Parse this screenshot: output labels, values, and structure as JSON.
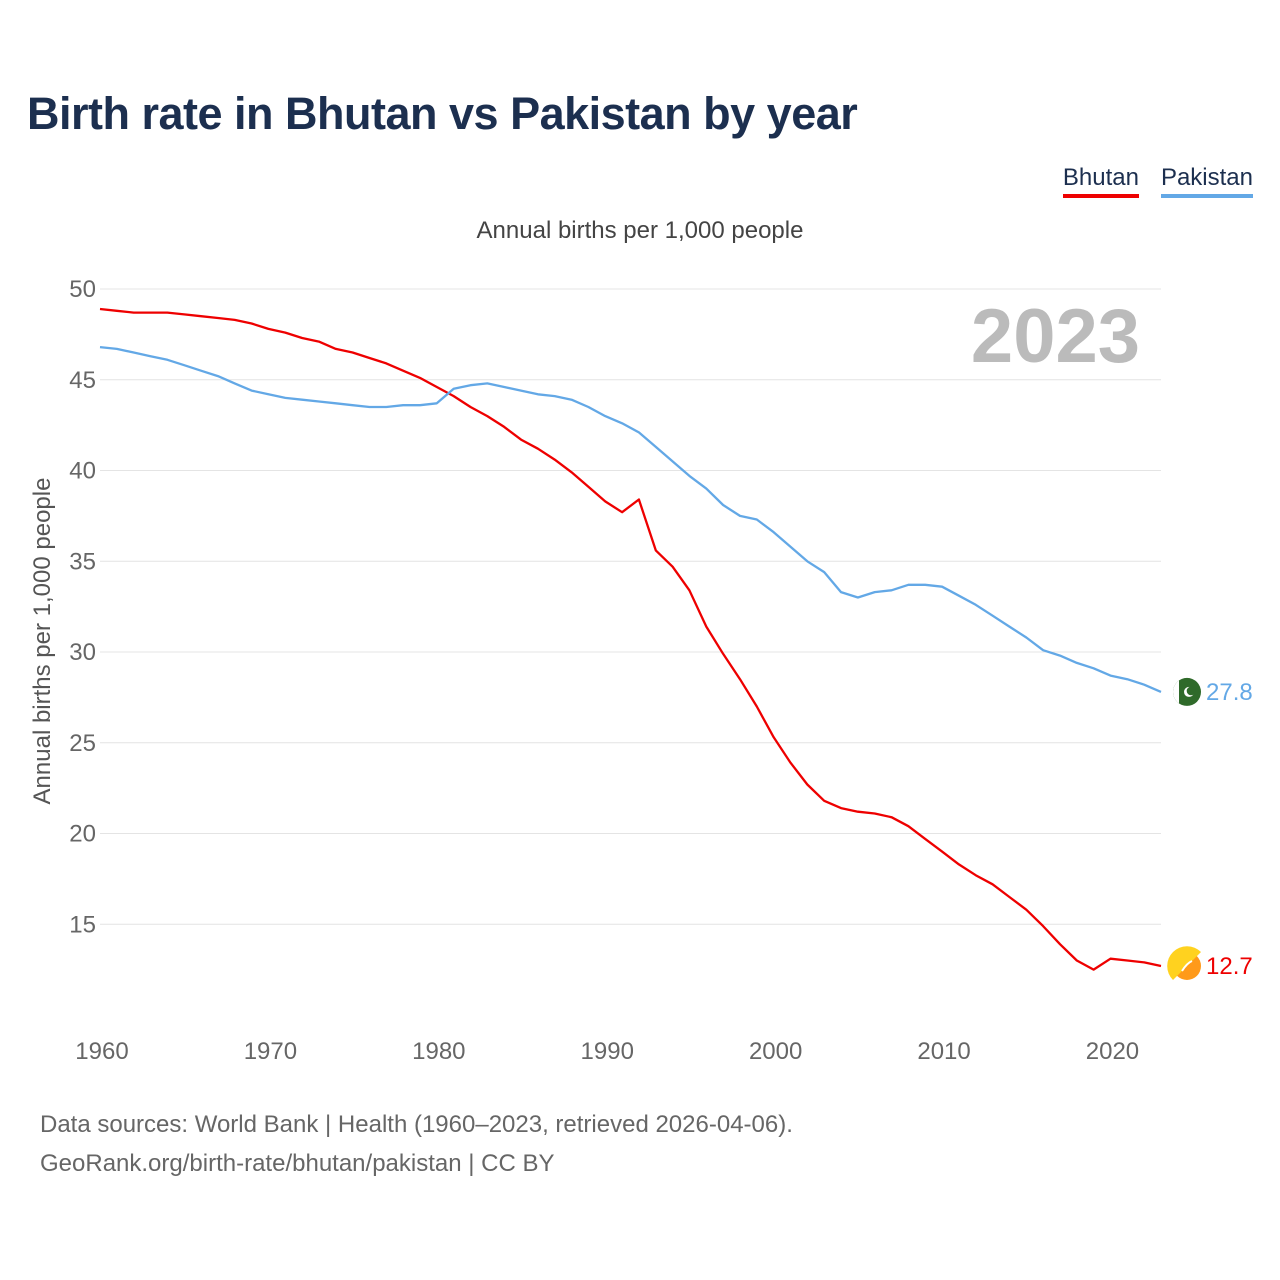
{
  "title": "Birth rate in Bhutan vs Pakistan by year",
  "legend": [
    {
      "name": "Bhutan",
      "color": "#ee0000"
    },
    {
      "name": "Pakistan",
      "color": "#63a8e6"
    }
  ],
  "subtitle": "Annual births per 1,000 people",
  "footer": {
    "line1": "Data sources: World Bank | Health (1960–2023, retrieved 2026-04-06).",
    "line2": "GeoRank.org/birth-rate/bhutan/pakistan | CC BY"
  },
  "chart_data": {
    "type": "line",
    "title": "Birth rate in Bhutan vs Pakistan by year",
    "xlabel": "",
    "ylabel": "Annual births per 1,000 people",
    "xlim": [
      1960,
      2023
    ],
    "ylim": [
      10,
      50
    ],
    "xticks": [
      1960,
      1970,
      1980,
      1990,
      2000,
      2010,
      2020
    ],
    "yticks": [
      15,
      20,
      25,
      30,
      35,
      40,
      45,
      50
    ],
    "year_label": "2023",
    "grid": true,
    "x": [
      1960,
      1961,
      1962,
      1963,
      1964,
      1965,
      1966,
      1967,
      1968,
      1969,
      1970,
      1971,
      1972,
      1973,
      1974,
      1975,
      1976,
      1977,
      1978,
      1979,
      1980,
      1981,
      1982,
      1983,
      1984,
      1985,
      1986,
      1987,
      1988,
      1989,
      1990,
      1991,
      1992,
      1993,
      1994,
      1995,
      1996,
      1997,
      1998,
      1999,
      2000,
      2001,
      2002,
      2003,
      2004,
      2005,
      2006,
      2007,
      2008,
      2009,
      2010,
      2011,
      2012,
      2013,
      2014,
      2015,
      2016,
      2017,
      2018,
      2019,
      2020,
      2021,
      2022,
      2023
    ],
    "series": [
      {
        "name": "Bhutan",
        "color": "#ee0000",
        "end_label": "12.7",
        "values": [
          48.9,
          48.8,
          48.7,
          48.7,
          48.7,
          48.6,
          48.5,
          48.4,
          48.3,
          48.1,
          47.8,
          47.6,
          47.3,
          47.1,
          46.7,
          46.5,
          46.2,
          45.9,
          45.5,
          45.1,
          44.6,
          44.1,
          43.5,
          43.0,
          42.4,
          41.7,
          41.2,
          40.6,
          39.9,
          39.1,
          38.3,
          37.7,
          38.4,
          35.6,
          34.7,
          33.4,
          31.4,
          29.9,
          28.5,
          27.0,
          25.3,
          23.9,
          22.7,
          21.8,
          21.4,
          21.2,
          21.1,
          20.9,
          20.4,
          19.7,
          19.0,
          18.3,
          17.7,
          17.2,
          16.5,
          15.8,
          14.9,
          13.9,
          13.0,
          12.5,
          13.1,
          13.0,
          12.9,
          12.7
        ]
      },
      {
        "name": "Pakistan",
        "color": "#63a8e6",
        "end_label": "27.8",
        "values": [
          46.8,
          46.7,
          46.5,
          46.3,
          46.1,
          45.8,
          45.5,
          45.2,
          44.8,
          44.4,
          44.2,
          44.0,
          43.9,
          43.8,
          43.7,
          43.6,
          43.5,
          43.5,
          43.6,
          43.6,
          43.7,
          44.5,
          44.7,
          44.8,
          44.6,
          44.4,
          44.2,
          44.1,
          43.9,
          43.5,
          43.0,
          42.6,
          42.1,
          41.3,
          40.5,
          39.7,
          39.0,
          38.1,
          37.5,
          37.3,
          36.6,
          35.8,
          35.0,
          34.4,
          33.3,
          33.0,
          33.3,
          33.4,
          33.7,
          33.7,
          33.6,
          33.1,
          32.6,
          32.0,
          31.4,
          30.8,
          30.1,
          29.8,
          29.4,
          29.1,
          28.7,
          28.5,
          28.2,
          27.8
        ]
      }
    ]
  }
}
